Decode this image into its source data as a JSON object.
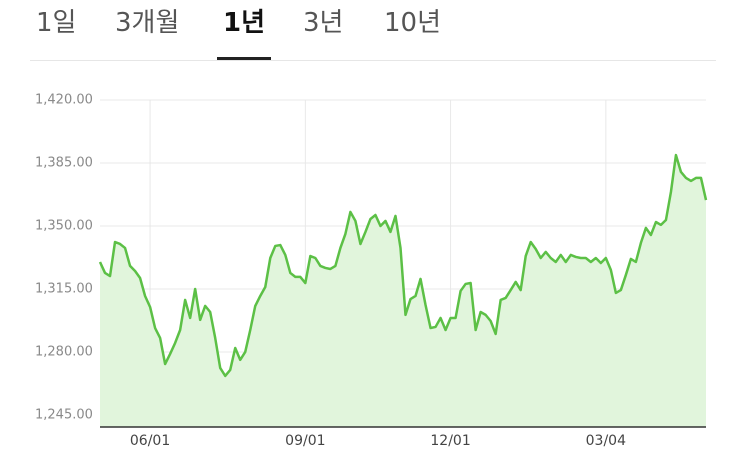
{
  "tabs": [
    "1일",
    "3개월",
    "1년",
    "3년",
    "10년"
  ],
  "active_tab": 2,
  "chart_data": {
    "type": "area",
    "color": "#5cc046",
    "fill_color": "#e1f5dc",
    "grid": true,
    "categories": [
      null,
      null,
      null,
      null,
      null,
      null,
      null,
      null,
      null,
      null,
      "06/01",
      null,
      null,
      null,
      null,
      null,
      null,
      null,
      null,
      null,
      null,
      null,
      null,
      null,
      null,
      null,
      null,
      null,
      null,
      null,
      null,
      null,
      null,
      null,
      null,
      null,
      null,
      null,
      null,
      null,
      null,
      "09/01",
      null,
      null,
      null,
      null,
      null,
      null,
      null,
      null,
      null,
      null,
      null,
      null,
      null,
      null,
      null,
      null,
      null,
      null,
      null,
      null,
      null,
      null,
      null,
      null,
      null,
      null,
      null,
      null,
      "12/01",
      null,
      null,
      null,
      null,
      null,
      null,
      null,
      null,
      null,
      null,
      null,
      null,
      null,
      null,
      null,
      null,
      null,
      null,
      null,
      null,
      null,
      null,
      null,
      null,
      null,
      null,
      null,
      null,
      null,
      null,
      "03/04",
      null,
      null,
      null,
      null,
      null,
      null,
      null,
      null,
      null,
      null,
      null,
      null,
      null,
      null,
      null,
      null,
      null,
      null,
      null,
      null
    ],
    "values": [
      1330.0,
      1323.9,
      1322.2,
      1341.1,
      1340.0,
      1337.8,
      1327.8,
      1325.0,
      1321.1,
      1311.1,
      1305.0,
      1293.3,
      1287.8,
      1273.3,
      1278.9,
      1285.0,
      1292.2,
      1308.9,
      1298.9,
      1315.0,
      1297.8,
      1305.6,
      1302.2,
      1287.8,
      1271.1,
      1266.7,
      1270.0,
      1282.2,
      1275.6,
      1280.0,
      1292.2,
      1305.6,
      1311.1,
      1316.1,
      1332.2,
      1338.9,
      1339.4,
      1333.9,
      1323.9,
      1321.7,
      1321.7,
      1318.3,
      1333.3,
      1332.2,
      1327.8,
      1326.7,
      1326.1,
      1327.8,
      1337.8,
      1345.6,
      1357.8,
      1352.8,
      1340.0,
      1346.7,
      1353.9,
      1356.1,
      1350.0,
      1352.8,
      1346.7,
      1355.6,
      1337.8,
      1300.6,
      1309.4,
      1311.1,
      1320.6,
      1306.1,
      1293.3,
      1293.9,
      1298.9,
      1292.2,
      1298.9,
      1298.9,
      1313.9,
      1317.8,
      1318.3,
      1292.2,
      1302.2,
      1300.6,
      1297.2,
      1290.0,
      1308.9,
      1310.0,
      1314.4,
      1318.9,
      1314.4,
      1333.3,
      1341.1,
      1337.2,
      1332.2,
      1335.6,
      1332.2,
      1330.0,
      1333.9,
      1330.0,
      1333.9,
      1332.8,
      1332.2,
      1332.2,
      1330.0,
      1332.2,
      1329.4,
      1332.2,
      1325.6,
      1312.8,
      1314.4,
      1322.8,
      1331.7,
      1330.0,
      1340.6,
      1348.9,
      1345.0,
      1352.2,
      1350.6,
      1353.3,
      1368.9,
      1389.4,
      1380.0,
      1376.7,
      1375.0,
      1376.7,
      1376.7,
      1364.4
    ],
    "ylim": [
      1238.3,
      1420
    ],
    "yticks": [
      {
        "value": 1245,
        "label": "1,245.00"
      },
      {
        "value": 1280,
        "label": "1,280.00"
      },
      {
        "value": 1315,
        "label": "1,315.00"
      },
      {
        "value": 1350,
        "label": "1,350.00"
      },
      {
        "value": 1385,
        "label": "1,385.00"
      },
      {
        "value": 1420,
        "label": "1,420.00"
      }
    ]
  }
}
